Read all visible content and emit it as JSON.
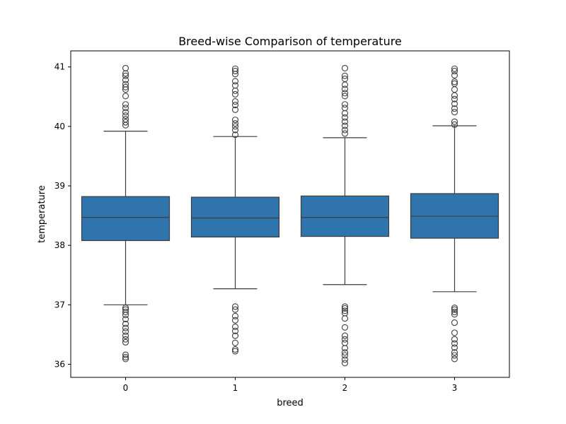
{
  "chart_data": {
    "type": "box",
    "title": "Breed-wise Comparison of temperature",
    "xlabel": "breed",
    "ylabel": "temperature",
    "ylim": [
      35.78,
      41.27
    ],
    "yticks": [
      36,
      37,
      38,
      39,
      40,
      41
    ],
    "grid": false,
    "box_color": "#2f74ac",
    "line_color": "#3d3d3d",
    "categories": [
      "0",
      "1",
      "2",
      "3"
    ],
    "boxes": [
      {
        "category": "0",
        "q1": 38.08,
        "median": 38.47,
        "q3": 38.82,
        "whisker_low": 37.0,
        "whisker_high": 39.92,
        "outliers": [
          36.09,
          36.12,
          36.16,
          36.37,
          36.42,
          36.48,
          36.55,
          36.61,
          36.68,
          36.76,
          36.83,
          36.88,
          36.92,
          36.95,
          40.02,
          40.07,
          40.12,
          40.18,
          40.24,
          40.31,
          40.37,
          40.51,
          40.62,
          40.66,
          40.71,
          40.78,
          40.85,
          40.89,
          40.98
        ]
      },
      {
        "category": "1",
        "q1": 38.14,
        "median": 38.46,
        "q3": 38.81,
        "whisker_low": 37.27,
        "whisker_high": 39.83,
        "outliers": [
          36.22,
          36.25,
          36.36,
          36.48,
          36.56,
          36.63,
          36.74,
          36.81,
          36.92,
          36.97,
          39.86,
          39.94,
          40.0,
          40.05,
          40.11,
          40.28,
          40.36,
          40.42,
          40.54,
          40.6,
          40.69,
          40.76,
          40.88,
          40.93,
          40.97
        ]
      },
      {
        "category": "2",
        "q1": 38.15,
        "median": 38.47,
        "q3": 38.83,
        "whisker_low": 37.34,
        "whisker_high": 39.81,
        "outliers": [
          36.02,
          36.08,
          36.15,
          36.2,
          36.27,
          36.36,
          36.42,
          36.48,
          36.62,
          36.77,
          36.86,
          36.9,
          36.94,
          36.97,
          39.88,
          39.94,
          40.01,
          40.08,
          40.15,
          40.22,
          40.31,
          40.37,
          40.51,
          40.56,
          40.63,
          40.7,
          40.8,
          40.85,
          40.98
        ]
      },
      {
        "category": "3",
        "q1": 38.12,
        "median": 38.49,
        "q3": 38.87,
        "whisker_low": 37.22,
        "whisker_high": 40.01,
        "outliers": [
          36.09,
          36.15,
          36.2,
          36.28,
          36.35,
          36.42,
          36.53,
          36.7,
          36.84,
          36.88,
          36.92,
          36.95,
          40.03,
          40.08,
          40.24,
          40.3,
          40.38,
          40.46,
          40.52,
          40.62,
          40.72,
          40.75,
          40.86,
          40.93,
          40.97
        ]
      }
    ]
  }
}
